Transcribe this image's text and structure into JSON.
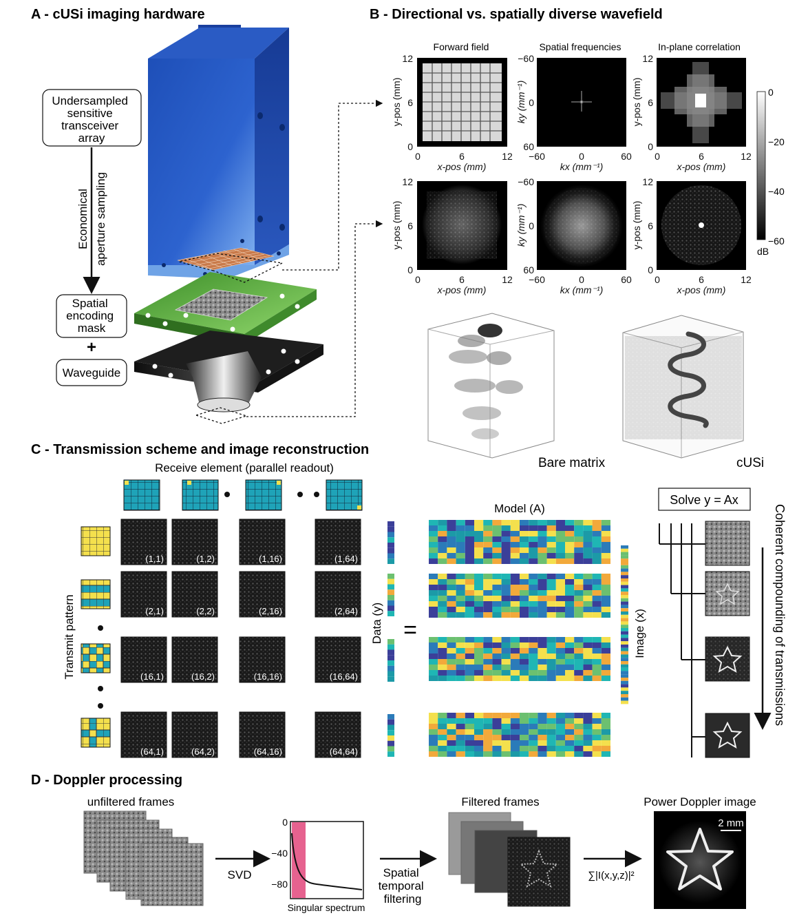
{
  "panelA": {
    "title": "A - cUSi imaging hardware",
    "array_box": [
      "Undersampled",
      "sensitive",
      "transceiver",
      "array"
    ],
    "sampling_label": [
      "Economical",
      "aperture sampling"
    ],
    "mask_box": [
      "Spatial",
      "encoding",
      "mask"
    ],
    "plus": "+",
    "waveguide_box": "Waveguide"
  },
  "panelB": {
    "title": "B -  Directional vs. spatially diverse wavefield",
    "col_titles": [
      "Forward field",
      "Spatial frequencies",
      "In-plane correlation"
    ],
    "pos_ticks": [
      "0",
      "6",
      "12"
    ],
    "pos_yticks": [
      "12",
      "6",
      "0"
    ],
    "freq_ticks": [
      "−60",
      "0",
      "60"
    ],
    "freq_yticks": [
      "−60",
      "0",
      "60"
    ],
    "xlabel_pos": "x-pos (mm)",
    "ylabel_pos": "y-pos (mm)",
    "xlabel_freq": "kx (mm⁻¹)",
    "ylabel_freq": "ky (mm⁻¹)",
    "colorbar_ticks": [
      "0",
      "−20",
      "−40",
      "−60"
    ],
    "colorbar_unit": "dB",
    "volume_labels": [
      "Bare matrix",
      "cUSi"
    ]
  },
  "panelC": {
    "title": "C - Transmission scheme and image reconstruction",
    "receive_label": "Receive element (parallel readout)",
    "transmit_label": "Transmit pattern",
    "cell_labels": [
      [
        "(1,1)",
        "(1,2)",
        "(1,16)",
        "(1,64)"
      ],
      [
        "(2,1)",
        "(2,2)",
        "(2,16)",
        "(2,64)"
      ],
      [
        "(16,1)",
        "(16,2)",
        "(16,16)",
        "(16,64)"
      ],
      [
        "(64,1)",
        "(64,2)",
        "(64,16)",
        "(64,64)"
      ]
    ],
    "data_label": "Data (y)",
    "equals": "=",
    "model_label": "Model (A)",
    "image_label": "Image (x)",
    "solve_label": "Solve y = Ax",
    "compounding_label": "Coherent  compounding of transmissions",
    "colors": {
      "blue": "#2b7bb9",
      "cyan": "#1fb6b4",
      "yellow": "#f4e04d",
      "navy": "#3b3f99",
      "green": "#6cc070",
      "orange": "#f2a93b",
      "teal": "#1c9aa7"
    }
  },
  "panelD": {
    "title": "D - Doppler processing",
    "unfiltered_label": "unfiltered frames",
    "svd_label": "SVD",
    "spectrum_yticks": [
      "0",
      "−40",
      "−80"
    ],
    "spectrum_xlabel": "Singular spectrum",
    "filter_label": [
      "Spatial",
      "temporal",
      "filtering"
    ],
    "filtered_label": "Filtered frames",
    "sum_label": "∑|I(x,y,z)|²",
    "power_label": "Power Doppler image",
    "scale_label": "2 mm"
  }
}
